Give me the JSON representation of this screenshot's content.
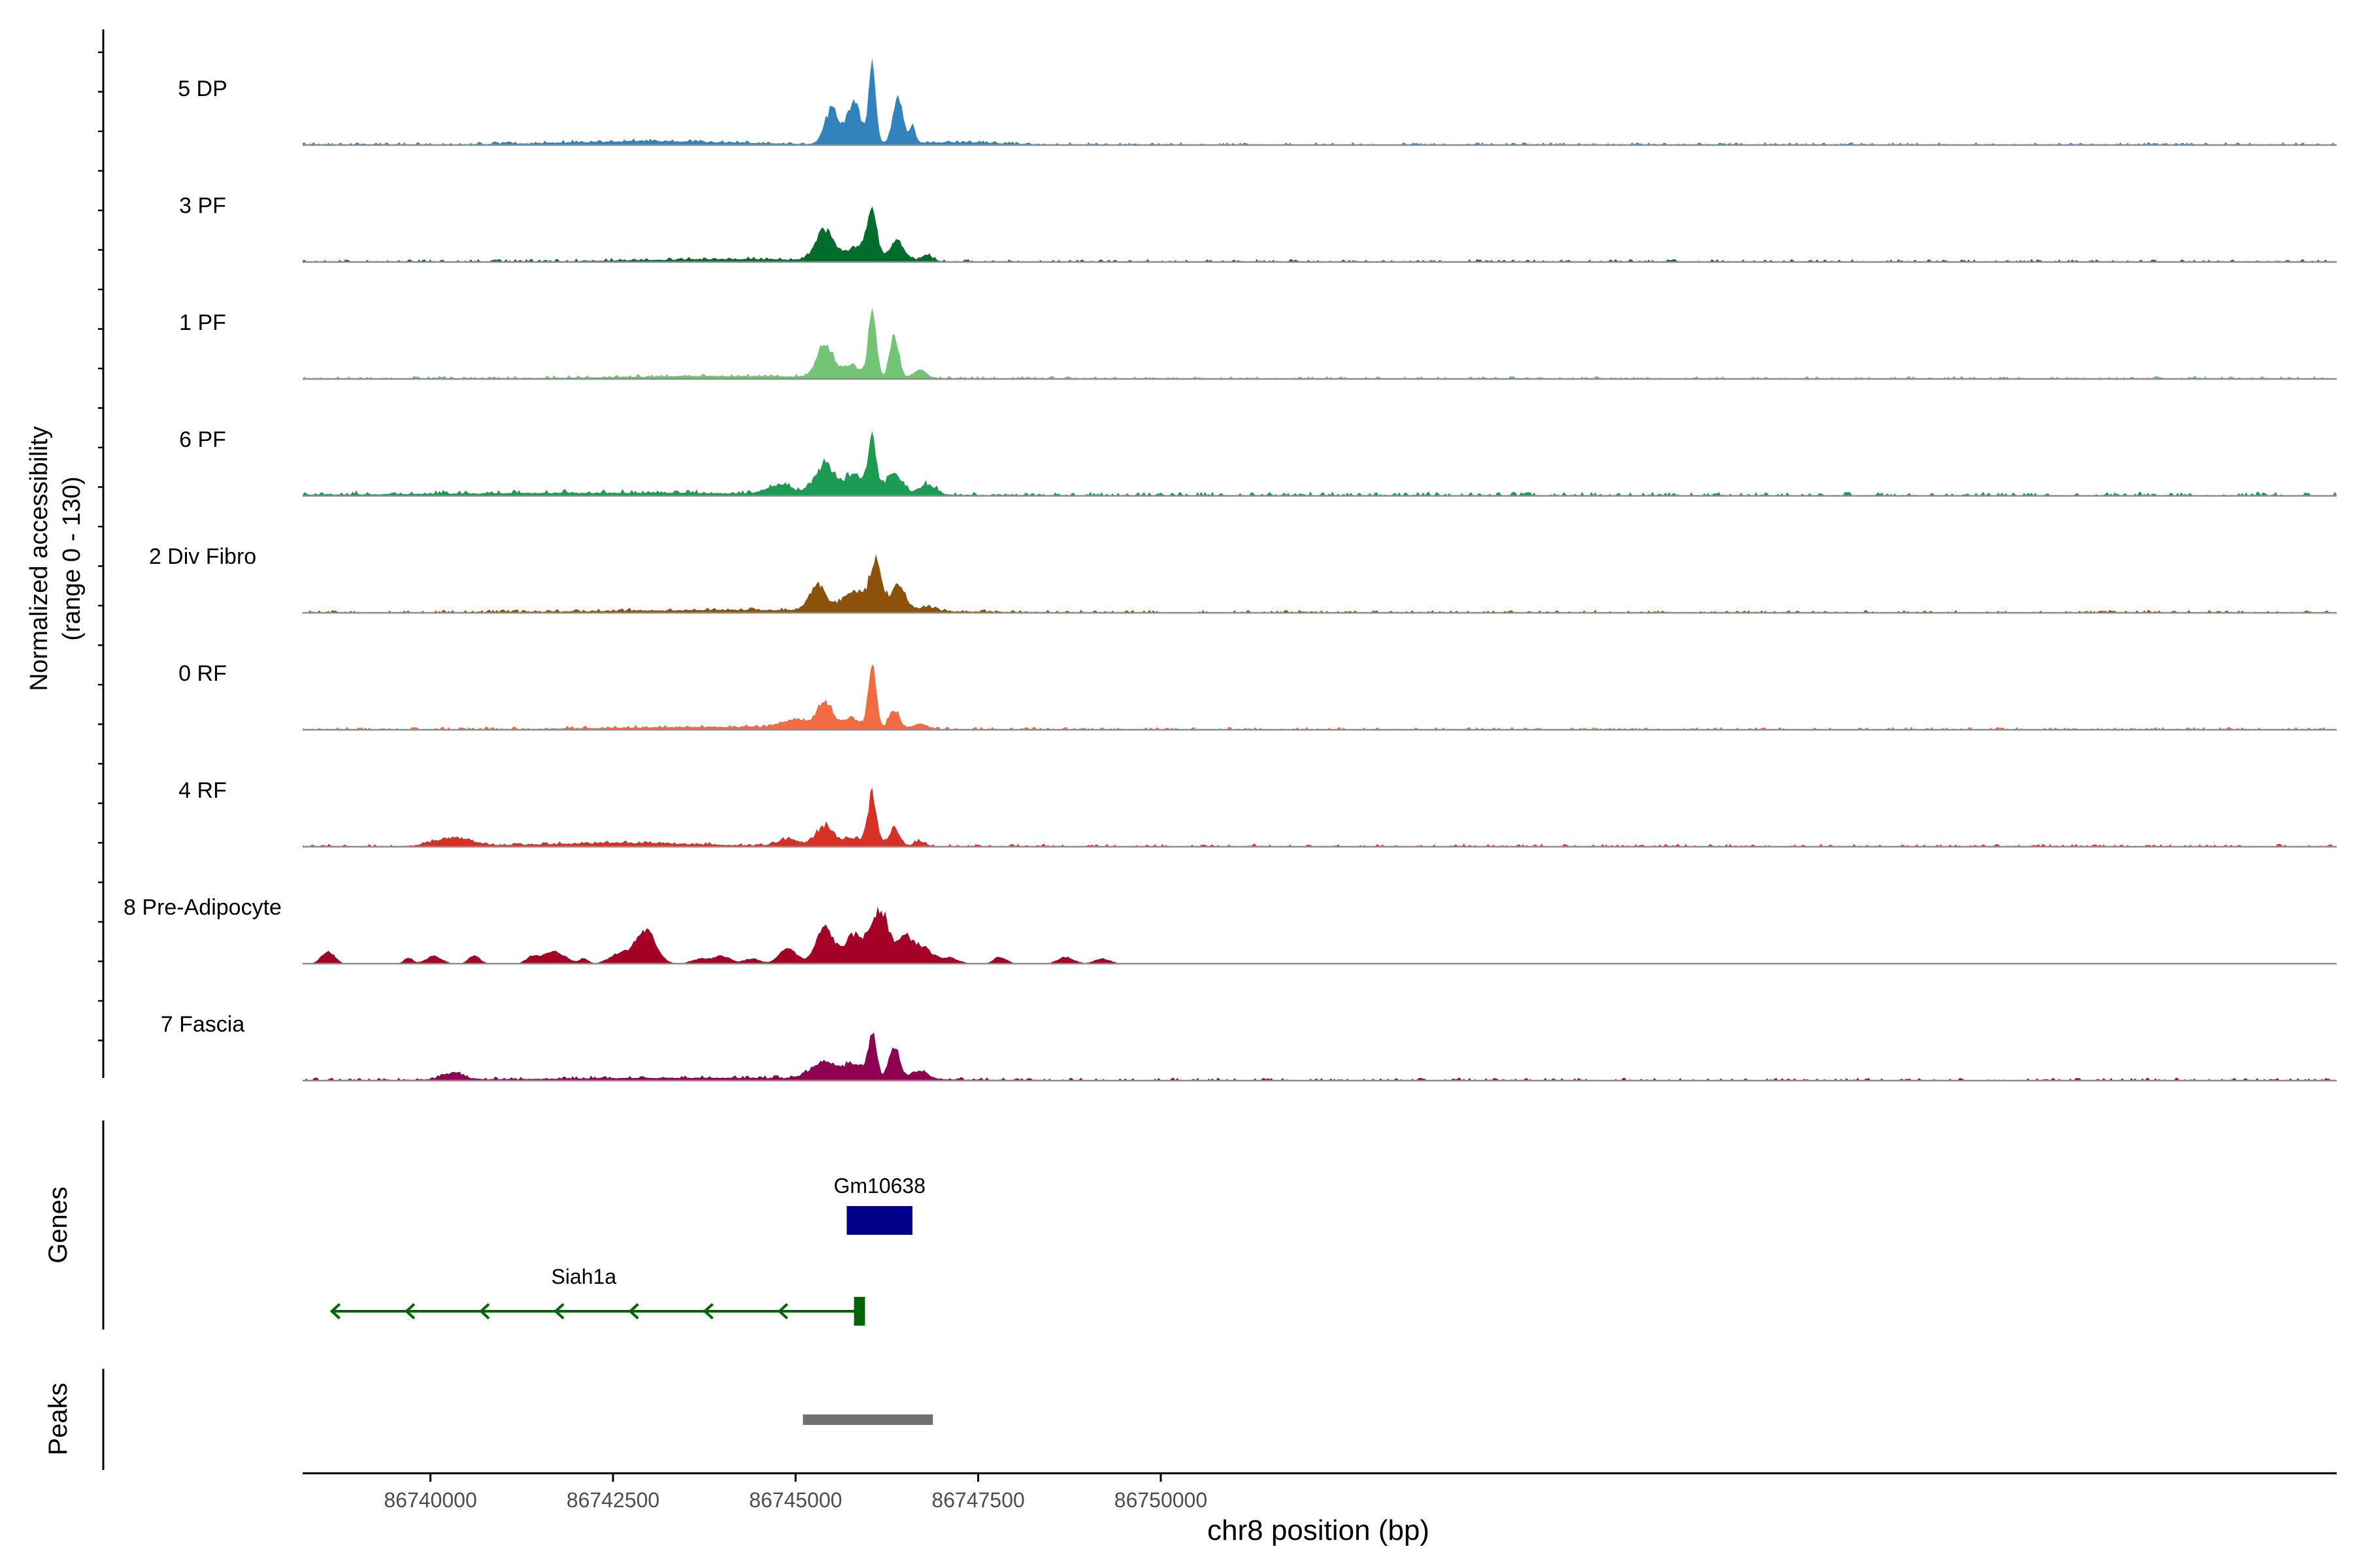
{
  "chart_data": {
    "type": "area",
    "title": "",
    "xlabel": "chr8 position (bp)",
    "ylabel": "Normalized accessibility",
    "ylabel_range": "(range 0 - 130)",
    "ylim": [
      0,
      130
    ],
    "xlim": [
      86738250,
      86766100
    ],
    "x_ticks": [
      86740000,
      86742500,
      86745000,
      86747500,
      86750000
    ],
    "x_tick_labels": [
      "86740000",
      "86742500",
      "86745000",
      "86747500",
      "86750000"
    ],
    "series": [
      {
        "name": "5 DP",
        "color": "#3182bd",
        "baseline": 2,
        "peaks": [
          [
            86743000,
            1200,
            4
          ],
          [
            86745500,
            100,
            40
          ],
          [
            86745800,
            90,
            50
          ],
          [
            86746050,
            50,
            90
          ],
          [
            86746400,
            70,
            55
          ],
          [
            86746600,
            40,
            22
          ],
          [
            86747200,
            600,
            3
          ]
        ]
      },
      {
        "name": "3 PF",
        "color": "#006d2c",
        "baseline": 2,
        "peaks": [
          [
            86744200,
            1300,
            3
          ],
          [
            86745400,
            120,
            35
          ],
          [
            86745900,
            180,
            18
          ],
          [
            86746050,
            60,
            55
          ],
          [
            86746400,
            100,
            22
          ],
          [
            86746800,
            80,
            8
          ]
        ]
      },
      {
        "name": "1 PF",
        "color": "#74c476",
        "baseline": 2,
        "peaks": [
          [
            86744000,
            1500,
            3
          ],
          [
            86745400,
            110,
            38
          ],
          [
            86745750,
            120,
            15
          ],
          [
            86746050,
            55,
            78
          ],
          [
            86746350,
            60,
            52
          ],
          [
            86746700,
            90,
            10
          ]
        ]
      },
      {
        "name": "6 PF",
        "color": "#1e9b52",
        "baseline": 3,
        "peaks": [
          [
            86742500,
            2600,
            3
          ],
          [
            86744800,
            180,
            10
          ],
          [
            86745400,
            120,
            35
          ],
          [
            86745800,
            150,
            22
          ],
          [
            86746050,
            60,
            58
          ],
          [
            86746350,
            110,
            25
          ],
          [
            86746800,
            110,
            12
          ]
        ]
      },
      {
        "name": "2 Div Fibro",
        "color": "#8c510a",
        "baseline": 2,
        "peaks": [
          [
            86744500,
            2000,
            3
          ],
          [
            86745300,
            110,
            30
          ],
          [
            86745800,
            160,
            22
          ],
          [
            86746100,
            80,
            55
          ],
          [
            86746400,
            100,
            30
          ],
          [
            86746800,
            120,
            5
          ]
        ]
      },
      {
        "name": "0 RF",
        "color": "#f26b43",
        "baseline": 2,
        "peaks": [
          [
            86744000,
            1500,
            3
          ],
          [
            86745000,
            180,
            10
          ],
          [
            86745400,
            100,
            30
          ],
          [
            86745750,
            120,
            12
          ],
          [
            86746050,
            55,
            72
          ],
          [
            86746350,
            70,
            22
          ],
          [
            86746700,
            100,
            6
          ]
        ]
      },
      {
        "name": "4 RF",
        "color": "#d73027",
        "baseline": 2,
        "peaks": [
          [
            86740300,
            250,
            10
          ],
          [
            86742600,
            1100,
            4
          ],
          [
            86744900,
            150,
            8
          ],
          [
            86745400,
            120,
            24
          ],
          [
            86745800,
            140,
            10
          ],
          [
            86746050,
            60,
            60
          ],
          [
            86746350,
            70,
            22
          ],
          [
            86746700,
            80,
            6
          ]
        ]
      },
      {
        "name": "8 Pre-Adipocyte",
        "color": "#a50026",
        "baseline": 0,
        "peaks": [
          [
            86738600,
            90,
            15
          ],
          [
            86739700,
            60,
            7
          ],
          [
            86740050,
            110,
            9
          ],
          [
            86740600,
            80,
            9
          ],
          [
            86741400,
            90,
            8
          ],
          [
            86741700,
            150,
            14
          ],
          [
            86742100,
            60,
            6
          ],
          [
            86742600,
            150,
            12
          ],
          [
            86742950,
            140,
            38
          ],
          [
            86743700,
            120,
            6
          ],
          [
            86744000,
            110,
            9
          ],
          [
            86744400,
            110,
            6
          ],
          [
            86744900,
            120,
            18
          ],
          [
            86745400,
            120,
            42
          ],
          [
            86745800,
            130,
            33
          ],
          [
            86746150,
            120,
            65
          ],
          [
            86746500,
            110,
            30
          ],
          [
            86746750,
            120,
            18
          ],
          [
            86747100,
            130,
            7
          ],
          [
            86747800,
            90,
            8
          ],
          [
            86748700,
            110,
            8
          ],
          [
            86749200,
            110,
            6
          ]
        ]
      },
      {
        "name": "7 Fascia",
        "color": "#8e0152",
        "baseline": 2,
        "peaks": [
          [
            86743800,
            2200,
            3
          ],
          [
            86740300,
            150,
            8
          ],
          [
            86745400,
            180,
            20
          ],
          [
            86745800,
            120,
            16
          ],
          [
            86746050,
            60,
            50
          ],
          [
            86746350,
            70,
            40
          ],
          [
            86746700,
            110,
            10
          ]
        ]
      }
    ],
    "genes": {
      "label": "Genes",
      "items": [
        {
          "name": "Gm10638",
          "start": 86745700,
          "end": 86746600,
          "strand": "+",
          "color": "#00008b"
        },
        {
          "name": "Siah1a",
          "start": 86738650,
          "end": 86745800,
          "strand": "-",
          "color": "#006400",
          "exon_start": 86745800,
          "exon_end": 86745950
        }
      ]
    },
    "peaks_track": {
      "label": "Peaks",
      "items": [
        {
          "start": 86745100,
          "end": 86746880,
          "color": "#707070"
        }
      ]
    }
  }
}
